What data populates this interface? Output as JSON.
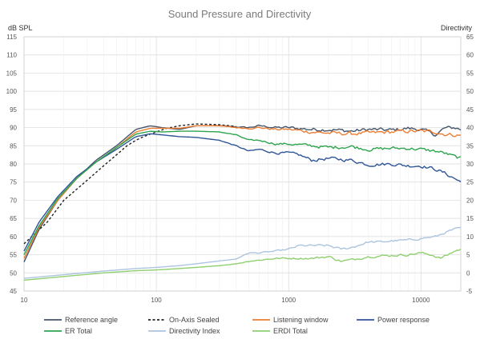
{
  "chart_data": {
    "type": "line",
    "title": "Sound Pressure and Directivity",
    "ylabel": "dB SPL",
    "y2label": "Directivity",
    "xscale": "log",
    "xlim": [
      10,
      20000
    ],
    "ylim": [
      45,
      115
    ],
    "y2lim": [
      -5,
      65
    ],
    "x_ticks": [
      "10",
      "100",
      "1000",
      "10000"
    ],
    "y_ticks": [
      "45",
      "50",
      "55",
      "60",
      "65",
      "70",
      "75",
      "80",
      "85",
      "90",
      "95",
      "100",
      "105",
      "110",
      "115"
    ],
    "y2_ticks": [
      "-5",
      "0",
      "5",
      "10",
      "15",
      "20",
      "25",
      "30",
      "35",
      "40",
      "45",
      "50",
      "55",
      "60",
      "65"
    ],
    "grid": true,
    "legend_position": "bottom",
    "series": [
      {
        "name": "Reference angle",
        "color": "#44546a",
        "axis": "left",
        "dash": false,
        "noise": 0.5,
        "x": [
          10,
          13,
          18,
          25,
          35,
          50,
          70,
          90,
          110,
          150,
          200,
          300,
          400,
          500,
          600,
          800,
          1000,
          1500,
          2000,
          3000,
          4000,
          6000,
          8000,
          10000,
          13000,
          15000,
          18000,
          20000
        ],
        "y": [
          53,
          62,
          70,
          76,
          81,
          85,
          89.5,
          90.5,
          90,
          89.5,
          90.5,
          90.5,
          90.2,
          90,
          90.5,
          90,
          90,
          89.5,
          89.5,
          89,
          89.5,
          89.3,
          89.8,
          89.5,
          88,
          89.8,
          90,
          89.5
        ]
      },
      {
        "name": "On-Axis Sealed",
        "color": "#222222",
        "axis": "left",
        "dash": true,
        "noise": 0,
        "x": [
          10,
          15,
          20,
          30,
          40,
          50,
          60,
          70,
          80,
          90,
          100,
          120,
          150,
          200,
          300,
          400
        ],
        "y": [
          58,
          64,
          70,
          75.5,
          79.5,
          82.5,
          85,
          86.5,
          87.5,
          88.2,
          88.8,
          89.8,
          90.5,
          91,
          90.8,
          90.3
        ]
      },
      {
        "name": "Listening window",
        "color": "#ed7d31",
        "axis": "left",
        "dash": false,
        "noise": 0.5,
        "x": [
          10,
          13,
          18,
          25,
          35,
          50,
          70,
          90,
          110,
          150,
          200,
          300,
          400,
          500,
          600,
          800,
          1000,
          1500,
          2000,
          3000,
          4000,
          6000,
          8000,
          10000,
          13000,
          15000,
          18000,
          20000
        ],
        "y": [
          54,
          62.5,
          70,
          76,
          80.5,
          84.5,
          88.8,
          89.8,
          89.8,
          89.8,
          90.5,
          90.5,
          90,
          89.8,
          90,
          89.5,
          89.5,
          88.8,
          88.5,
          88.3,
          88.5,
          88.8,
          89,
          89,
          88.8,
          88.2,
          88,
          87.8
        ]
      },
      {
        "name": "Power response",
        "color": "#2f5597",
        "axis": "left",
        "dash": false,
        "noise": 0.45,
        "x": [
          10,
          13,
          18,
          25,
          35,
          50,
          70,
          90,
          110,
          150,
          200,
          300,
          400,
          500,
          600,
          800,
          1000,
          1200,
          1500,
          2000,
          3000,
          4000,
          6000,
          8000,
          10000,
          13000,
          15000,
          18000,
          20000
        ],
        "y": [
          56,
          64,
          71,
          76.5,
          80.5,
          84,
          87.5,
          88.3,
          88,
          87.5,
          87.3,
          86.5,
          85,
          83.5,
          84,
          83,
          83,
          82.5,
          81,
          81.5,
          81,
          79.8,
          80,
          79.5,
          79.5,
          78.5,
          77.5,
          76,
          75
        ]
      },
      {
        "name": "ER Total",
        "color": "#2ea44f",
        "axis": "left",
        "dash": false,
        "noise": 0.45,
        "x": [
          10,
          13,
          18,
          25,
          35,
          50,
          70,
          90,
          110,
          150,
          200,
          300,
          400,
          500,
          600,
          800,
          1000,
          1500,
          2000,
          3000,
          4000,
          6000,
          8000,
          10000,
          13000,
          15000,
          18000,
          20000
        ],
        "y": [
          55,
          63,
          70.5,
          76,
          80.5,
          84.5,
          88.2,
          89,
          88.8,
          89,
          89,
          88.8,
          88,
          86.5,
          86.5,
          85.5,
          85.5,
          85,
          84.5,
          84.8,
          84,
          84.3,
          84.3,
          84,
          83.5,
          83,
          82,
          81.5
        ]
      },
      {
        "name": "Directivity Index",
        "color": "#adc4e0",
        "axis": "right",
        "dash": false,
        "noise": 0.3,
        "x": [
          10,
          20,
          40,
          70,
          100,
          150,
          200,
          300,
          400,
          500,
          600,
          800,
          1000,
          1200,
          1500,
          2000,
          2500,
          3000,
          4000,
          5000,
          6000,
          8000,
          10000,
          13000,
          15000,
          18000,
          20000
        ],
        "y": [
          -1.5,
          -0.5,
          0.5,
          1.2,
          1.5,
          2,
          2.5,
          3.3,
          3.8,
          5.5,
          5.5,
          6,
          6.5,
          7.5,
          7.5,
          7.5,
          6.5,
          7,
          8.5,
          8.5,
          8.8,
          9,
          9.5,
          10,
          11,
          12,
          12.3
        ]
      },
      {
        "name": "ERDI Total",
        "color": "#8fcf70",
        "axis": "right",
        "dash": false,
        "noise": 0.3,
        "x": [
          10,
          20,
          40,
          70,
          100,
          150,
          200,
          300,
          400,
          500,
          600,
          800,
          1000,
          1500,
          2000,
          2500,
          3000,
          4000,
          6000,
          8000,
          10000,
          12000,
          14000,
          16000,
          18000,
          20000
        ],
        "y": [
          -2,
          -1,
          0,
          0.6,
          0.8,
          1.2,
          1.5,
          2,
          2.5,
          3.2,
          3.5,
          4,
          4,
          4,
          4.5,
          3.2,
          3.6,
          4.5,
          4.8,
          5,
          5.5,
          5,
          4,
          5,
          6,
          6.5
        ]
      }
    ]
  }
}
